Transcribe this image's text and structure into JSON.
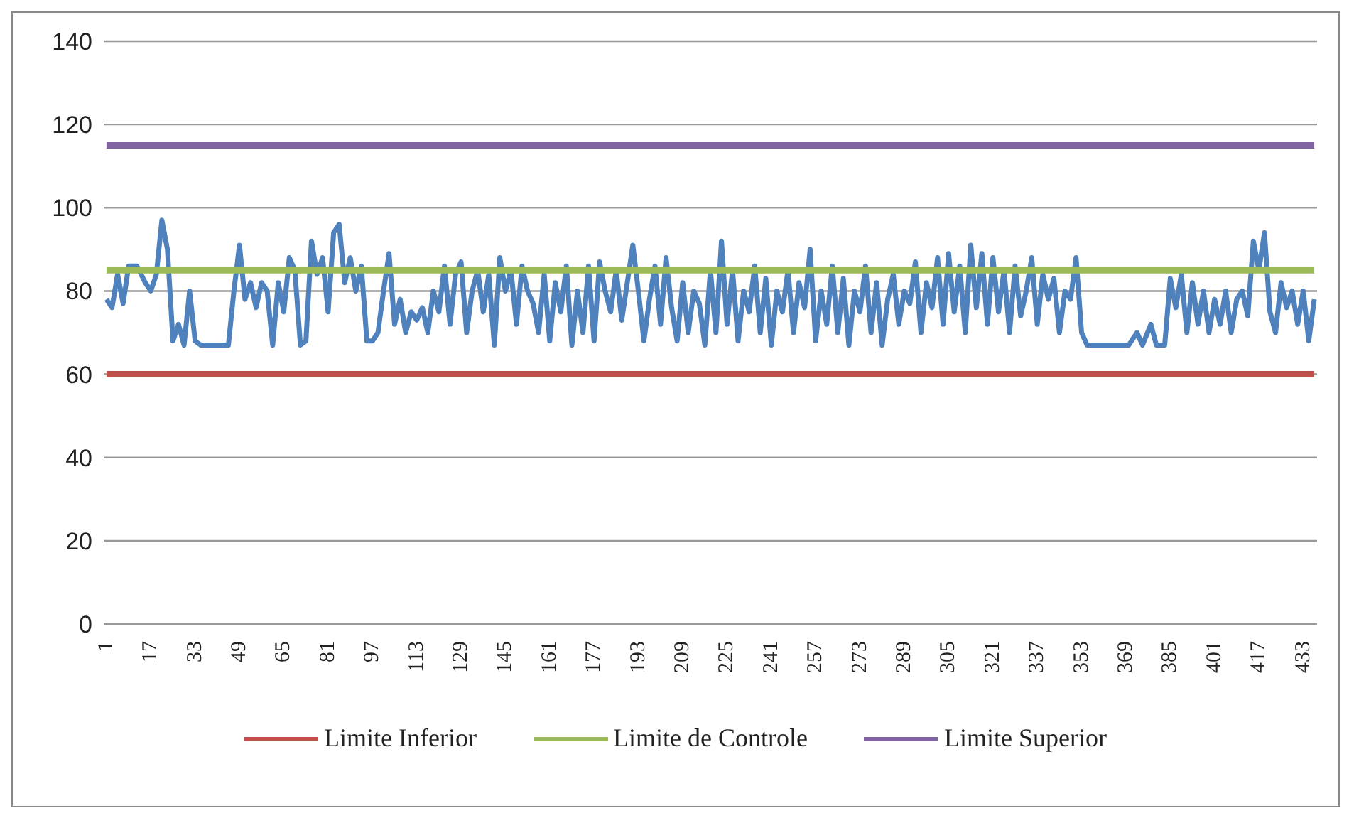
{
  "chart_data": {
    "type": "line",
    "xlim": [
      0,
      438
    ],
    "xticks": [
      1,
      17,
      33,
      49,
      65,
      81,
      97,
      113,
      129,
      145,
      161,
      177,
      193,
      209,
      225,
      241,
      257,
      273,
      289,
      305,
      321,
      337,
      353,
      369,
      385,
      401,
      417,
      433
    ],
    "ylim": [
      0,
      140
    ],
    "yticks": [
      0,
      20,
      40,
      60,
      80,
      100,
      120,
      140
    ],
    "grid": "y",
    "legend": "bottom",
    "marker": "none",
    "line_style": "solid",
    "series": [
      {
        "color": "#4f81bd",
        "x": [
          1,
          3,
          5,
          7,
          9,
          12,
          15,
          17,
          19,
          21,
          23,
          25,
          27,
          29,
          31,
          33,
          35,
          37,
          41,
          45,
          47,
          49,
          51,
          53,
          55,
          57,
          59,
          61,
          63,
          65,
          67,
          69,
          71,
          73,
          75,
          77,
          79,
          81,
          83,
          85,
          87,
          89,
          91,
          93,
          95,
          97,
          99,
          101,
          103,
          105,
          107,
          109,
          111,
          113,
          115,
          117,
          119,
          121,
          123,
          125,
          127,
          129,
          131,
          133,
          135,
          137,
          139,
          141,
          143,
          145,
          147,
          149,
          151,
          153,
          155,
          157,
          159,
          161,
          163,
          165,
          167,
          169,
          171,
          173,
          175,
          177,
          179,
          181,
          183,
          185,
          187,
          189,
          191,
          193,
          195,
          197,
          199,
          201,
          203,
          205,
          207,
          209,
          211,
          213,
          215,
          217,
          219,
          221,
          223,
          225,
          227,
          229,
          231,
          233,
          235,
          237,
          239,
          241,
          243,
          245,
          247,
          249,
          251,
          253,
          255,
          257,
          259,
          261,
          263,
          265,
          267,
          269,
          271,
          273,
          275,
          277,
          279,
          281,
          283,
          285,
          287,
          289,
          291,
          293,
          295,
          297,
          299,
          301,
          303,
          305,
          307,
          309,
          311,
          313,
          315,
          317,
          319,
          321,
          323,
          325,
          327,
          329,
          331,
          333,
          335,
          337,
          339,
          341,
          343,
          345,
          347,
          349,
          351,
          353,
          355,
          360,
          365,
          370,
          373,
          375,
          378,
          380,
          383,
          385,
          387,
          389,
          391,
          393,
          395,
          397,
          399,
          401,
          403,
          405,
          407,
          409,
          411,
          413,
          415,
          417,
          419,
          421,
          423,
          425,
          427,
          429,
          431,
          433,
          435,
          437
        ],
        "values": [
          78,
          76,
          84,
          77,
          86,
          86,
          82,
          80,
          84,
          97,
          90,
          68,
          72,
          67,
          80,
          68,
          67,
          67,
          67,
          67,
          80,
          91,
          78,
          82,
          76,
          82,
          80,
          67,
          82,
          75,
          88,
          85,
          67,
          68,
          92,
          84,
          88,
          75,
          94,
          96,
          82,
          88,
          80,
          86,
          68,
          68,
          70,
          80,
          89,
          72,
          78,
          70,
          75,
          73,
          76,
          70,
          80,
          75,
          86,
          72,
          84,
          87,
          70,
          80,
          85,
          75,
          84,
          67,
          88,
          80,
          85,
          72,
          86,
          80,
          77,
          70,
          84,
          68,
          82,
          75,
          86,
          67,
          80,
          70,
          86,
          68,
          87,
          80,
          75,
          85,
          73,
          82,
          91,
          80,
          68,
          78,
          86,
          72,
          88,
          76,
          68,
          82,
          70,
          80,
          77,
          67,
          85,
          70,
          92,
          72,
          85,
          68,
          80,
          75,
          86,
          70,
          83,
          67,
          80,
          75,
          85,
          70,
          82,
          76,
          90,
          68,
          80,
          72,
          86,
          70,
          83,
          67,
          80,
          75,
          86,
          70,
          82,
          67,
          78,
          84,
          72,
          80,
          77,
          87,
          70,
          82,
          76,
          88,
          72,
          89,
          75,
          86,
          70,
          91,
          76,
          89,
          72,
          88,
          75,
          85,
          70,
          86,
          74,
          80,
          88,
          72,
          84,
          78,
          83,
          70,
          80,
          78,
          88,
          70,
          67,
          67,
          67,
          67,
          70,
          67,
          72,
          67,
          67,
          83,
          76,
          84,
          70,
          82,
          72,
          80,
          70,
          78,
          72,
          80,
          70,
          78,
          80,
          74,
          92,
          85,
          94,
          75,
          70,
          82,
          76,
          80,
          72,
          80,
          68,
          78
        ]
      },
      {
        "name": "Limite Inferior",
        "color": "#c0504d",
        "x": [
          1,
          437
        ],
        "values": [
          60,
          60
        ]
      },
      {
        "name": "Limite de Controle",
        "color": "#9bbb59",
        "x": [
          1,
          437
        ],
        "values": [
          85,
          85
        ]
      },
      {
        "name": "Limite Superior",
        "color": "#8064a2",
        "x": [
          1,
          437
        ],
        "values": [
          115,
          115
        ]
      }
    ]
  }
}
